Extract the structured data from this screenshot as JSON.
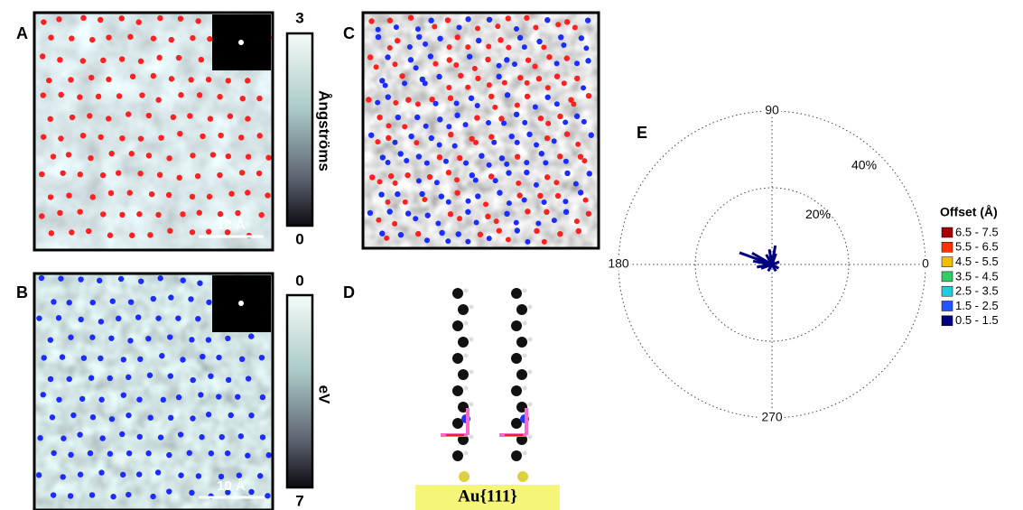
{
  "panels": {
    "a": {
      "letter": "A",
      "colorbar": {
        "top": "3",
        "bottom": "0",
        "label": "Ångströms"
      },
      "scale_bar": "10 Å"
    },
    "b": {
      "letter": "B",
      "colorbar": {
        "top": "0",
        "bottom": "7",
        "label": "eV"
      },
      "scale_bar": "10 Å"
    },
    "c": {
      "letter": "C"
    },
    "d": {
      "letter": "D",
      "substrate": "Au{111}"
    }
  },
  "chart_data": {
    "type": "polar_bar",
    "letter": "E",
    "rlim": [
      0,
      40
    ],
    "rticks": [
      {
        "value": 20,
        "label": "20%"
      },
      {
        "value": 40,
        "label": "40%"
      }
    ],
    "thetaticks": [
      90,
      180,
      0,
      270
    ],
    "grid": true,
    "legend_title": "Offset (Å)",
    "series": [
      {
        "name": "6.5 - 7.5",
        "color": "#a80000",
        "theta": [],
        "values": []
      },
      {
        "name": "5.5 - 6.5",
        "color": "#ff3300",
        "theta": [],
        "values": []
      },
      {
        "name": "4.5 - 5.5",
        "color": "#f0c000",
        "theta": [],
        "values": []
      },
      {
        "name": "3.5 - 4.5",
        "color": "#33cc66",
        "theta": [],
        "values": []
      },
      {
        "name": "2.5 - 3.5",
        "color": "#22ccdd",
        "theta": [],
        "values": []
      },
      {
        "name": "1.5 - 2.5",
        "color": "#2255ff",
        "theta": [],
        "values": []
      },
      {
        "name": "0.5 - 1.5",
        "color": "#000080",
        "theta": [
          160,
          150,
          170,
          80,
          70,
          100,
          190,
          200,
          300,
          330,
          20,
          240,
          120
        ],
        "values": [
          9,
          6,
          5,
          5,
          3,
          4,
          4,
          3,
          2,
          2,
          2,
          2,
          3
        ]
      }
    ]
  }
}
